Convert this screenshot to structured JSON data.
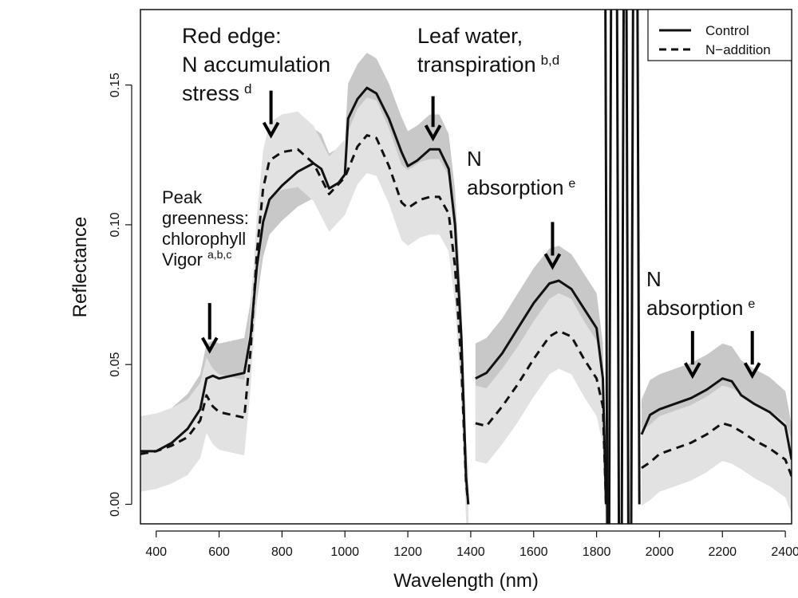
{
  "chart_data": {
    "type": "line",
    "xlabel": "Wavelength (nm)",
    "ylabel": "Reflectance",
    "xlim": [
      350,
      2420
    ],
    "ylim": [
      -0.007,
      0.177
    ],
    "x_ticks": [
      "400",
      "600",
      "800",
      "1000",
      "1200",
      "1400",
      "1600",
      "1800",
      "2000",
      "2200",
      "2400"
    ],
    "y_ticks": [
      "0.00",
      "0.05",
      "0.10",
      "0.15"
    ],
    "legend": {
      "position": "top-right",
      "entries": [
        "Control",
        "N−addition"
      ]
    },
    "series": [
      {
        "name": "Control",
        "style": "solid",
        "band_color": "#c8c8c8",
        "segments": [
          [
            [
              350,
              0.019
            ],
            [
              400,
              0.019
            ],
            [
              450,
              0.022
            ],
            [
              500,
              0.027
            ],
            [
              540,
              0.034
            ],
            [
              560,
              0.045
            ],
            [
              580,
              0.046
            ],
            [
              600,
              0.045
            ],
            [
              640,
              0.046
            ],
            [
              680,
              0.047
            ],
            [
              700,
              0.06
            ],
            [
              720,
              0.085
            ],
            [
              740,
              0.101
            ],
            [
              760,
              0.109
            ],
            [
              800,
              0.114
            ],
            [
              850,
              0.119
            ],
            [
              900,
              0.122
            ],
            [
              925,
              0.12
            ],
            [
              950,
              0.113
            ],
            [
              980,
              0.115
            ],
            [
              1000,
              0.118
            ],
            [
              1010,
              0.138
            ],
            [
              1040,
              0.145
            ],
            [
              1070,
              0.149
            ],
            [
              1100,
              0.147
            ],
            [
              1140,
              0.138
            ],
            [
              1180,
              0.126
            ],
            [
              1200,
              0.121
            ],
            [
              1230,
              0.123
            ],
            [
              1270,
              0.127
            ],
            [
              1300,
              0.127
            ],
            [
              1330,
              0.12
            ],
            [
              1350,
              0.1
            ],
            [
              1370,
              0.06
            ],
            [
              1385,
              0.01
            ],
            [
              1392,
              0.0
            ]
          ],
          [
            [
              1415,
              0.045
            ],
            [
              1450,
              0.047
            ],
            [
              1500,
              0.054
            ],
            [
              1550,
              0.063
            ],
            [
              1600,
              0.072
            ],
            [
              1650,
              0.079
            ],
            [
              1680,
              0.08
            ],
            [
              1720,
              0.077
            ],
            [
              1760,
              0.07
            ],
            [
              1800,
              0.063
            ],
            [
              1820,
              0.045
            ],
            [
              1830,
              0.0
            ]
          ],
          [
            [
              1943,
              0.025
            ],
            [
              1970,
              0.032
            ],
            [
              2000,
              0.034
            ],
            [
              2050,
              0.036
            ],
            [
              2100,
              0.038
            ],
            [
              2150,
              0.041
            ],
            [
              2200,
              0.045
            ],
            [
              2230,
              0.044
            ],
            [
              2260,
              0.039
            ],
            [
              2300,
              0.036
            ],
            [
              2350,
              0.033
            ],
            [
              2400,
              0.028
            ],
            [
              2420,
              0.016
            ]
          ]
        ]
      },
      {
        "name": "N−addition",
        "style": "dashed",
        "band_color": "#e2e2e2",
        "segments": [
          [
            [
              350,
              0.018
            ],
            [
              400,
              0.019
            ],
            [
              450,
              0.021
            ],
            [
              500,
              0.024
            ],
            [
              540,
              0.03
            ],
            [
              560,
              0.039
            ],
            [
              580,
              0.035
            ],
            [
              600,
              0.033
            ],
            [
              640,
              0.032
            ],
            [
              680,
              0.031
            ],
            [
              700,
              0.055
            ],
            [
              720,
              0.09
            ],
            [
              740,
              0.113
            ],
            [
              760,
              0.123
            ],
            [
              800,
              0.126
            ],
            [
              850,
              0.127
            ],
            [
              900,
              0.122
            ],
            [
              950,
              0.111
            ],
            [
              1000,
              0.117
            ],
            [
              1040,
              0.128
            ],
            [
              1070,
              0.132
            ],
            [
              1100,
              0.131
            ],
            [
              1140,
              0.121
            ],
            [
              1180,
              0.108
            ],
            [
              1200,
              0.106
            ],
            [
              1240,
              0.109
            ],
            [
              1270,
              0.11
            ],
            [
              1300,
              0.11
            ],
            [
              1330,
              0.104
            ],
            [
              1350,
              0.085
            ],
            [
              1370,
              0.05
            ],
            [
              1385,
              0.008
            ],
            [
              1392,
              0.0
            ]
          ],
          [
            [
              1415,
              0.029
            ],
            [
              1450,
              0.028
            ],
            [
              1500,
              0.035
            ],
            [
              1550,
              0.043
            ],
            [
              1600,
              0.052
            ],
            [
              1650,
              0.06
            ],
            [
              1680,
              0.062
            ],
            [
              1720,
              0.06
            ],
            [
              1760,
              0.052
            ],
            [
              1800,
              0.045
            ],
            [
              1820,
              0.035
            ],
            [
              1830,
              0.0
            ]
          ],
          [
            [
              1943,
              0.013
            ],
            [
              1970,
              0.015
            ],
            [
              2000,
              0.018
            ],
            [
              2050,
              0.02
            ],
            [
              2100,
              0.022
            ],
            [
              2150,
              0.025
            ],
            [
              2200,
              0.029
            ],
            [
              2230,
              0.028
            ],
            [
              2260,
              0.026
            ],
            [
              2300,
              0.023
            ],
            [
              2350,
              0.02
            ],
            [
              2400,
              0.016
            ],
            [
              2420,
              0.01
            ]
          ]
        ]
      }
    ],
    "annotations": [
      {
        "lines": [
          "Peak",
          "greenness:",
          "chlorophyll",
          "Vigor"
        ],
        "superscript": "a,b,c",
        "arrow_x": 570,
        "arrow_y_top": 0.072,
        "arrow_y_tip": 0.055
      },
      {
        "lines": [
          "Red edge:",
          "N accumulation",
          "stress"
        ],
        "superscript": "d",
        "arrow_x": 765,
        "arrow_y_top": 0.148,
        "arrow_y_tip": 0.132
      },
      {
        "lines": [
          "Leaf water,",
          "transpiration"
        ],
        "superscript": "b,d",
        "arrow_x": 1280,
        "arrow_y_top": 0.146,
        "arrow_y_tip": 0.131
      },
      {
        "lines": [
          "N",
          "absorption"
        ],
        "superscript": "e",
        "arrow_x": 1660,
        "arrow_y_top": 0.101,
        "arrow_y_tip": 0.085
      },
      {
        "lines": [
          "N",
          "absorption"
        ],
        "superscript": "e",
        "arrow_x": 2105,
        "arrow_y_top": 0.062,
        "arrow_y_tip": 0.046
      },
      {
        "arrow_x": 2295,
        "arrow_y_top": 0.062,
        "arrow_y_tip": 0.046
      }
    ]
  }
}
